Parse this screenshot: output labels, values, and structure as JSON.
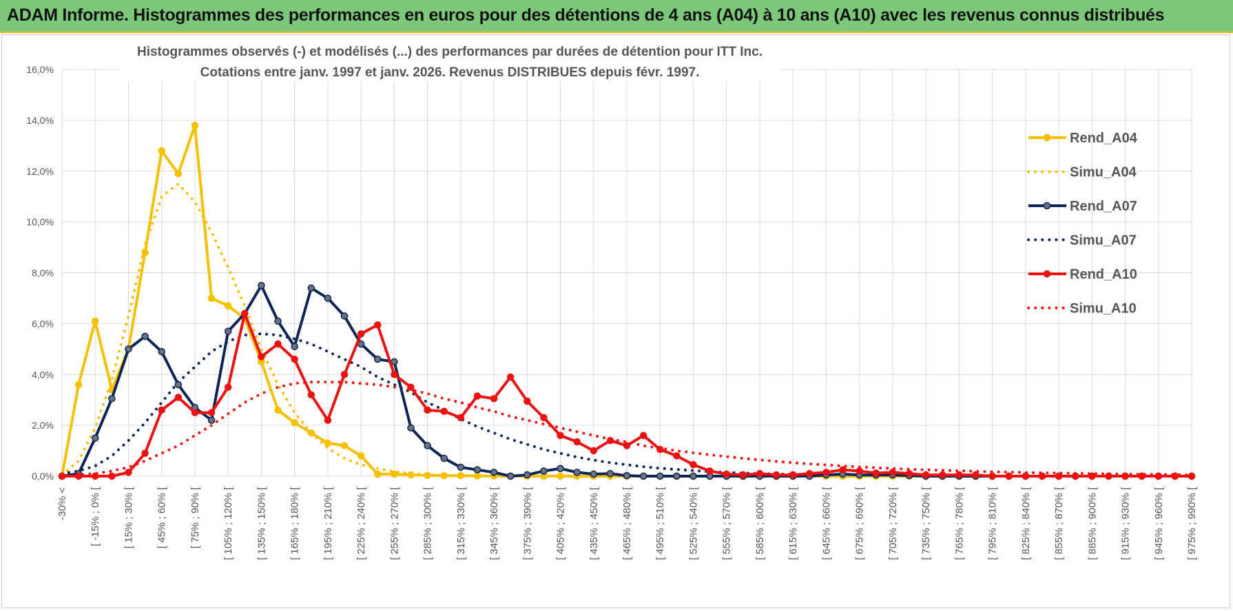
{
  "banner": {
    "title": "ADAM Informe. Histogrammes des performances en euros pour des détentions de 4 ans (A04) à 10 ans (A10) avec les revenus connus distribués",
    "color": "#7dc77a"
  },
  "chart_data": {
    "type": "line",
    "title": "Histogrammes observés (-) et modélisés (...) des performances par durées de détention pour ITT Inc.",
    "subtitle": "Cotations entre janv. 1997 et janv. 2026. Revenus DISTRIBUES depuis févr. 1997.",
    "ylim": [
      0,
      16
    ],
    "yticks": [
      "0,0%",
      "2,0%",
      "4,0%",
      "6,0%",
      "8,0%",
      "10,0%",
      "12,0%",
      "14,0%",
      "16,0%"
    ],
    "grid": true,
    "legend_position": "right",
    "categories": [
      "-30% <",
      "[ -15% ; 0% [",
      "[ 0% ; 15% [",
      "[ 15% ; 30% [",
      "[ 30% ; 45% [",
      "[ 45% ; 60% [",
      "[ 60% ; 75% [",
      "[ 75% ; 90% [",
      "[ 90% ; 105% [",
      "[ 105% ; 120% [",
      "[ 120% ; 135% [",
      "[ 135% ; 150% [",
      "[ 150% ; 165% [",
      "[ 165% ; 180% [",
      "[ 180% ; 195% [",
      "[ 195% ; 210% [",
      "[ 210% ; 225% [",
      "[ 225% ; 240% [",
      "[ 240% ; 255% [",
      "[ 255% ; 270% [",
      "[ 270% ; 285% [",
      "[ 285% ; 300% [",
      "[ 300% ; 315% [",
      "[ 315% ; 330% [",
      "[ 330% ; 345% [",
      "[ 345% ; 360% [",
      "[ 360% ; 375% [",
      "[ 375% ; 390% [",
      "[ 390% ; 405% [",
      "[ 405% ; 420% [",
      "[ 420% ; 435% [",
      "[ 435% ; 450% [",
      "[ 450% ; 465% [",
      "[ 465% ; 480% [",
      "[ 480% ; 495% [",
      "[ 495% ; 510% [",
      "[ 510% ; 525% [",
      "[ 525% ; 540% [",
      "[ 540% ; 555% [",
      "[ 555% ; 570% [",
      "[ 570% ; 585% [",
      "[ 585% ; 600% [",
      "[ 600% ; 615% [",
      "[ 615% ; 630% [",
      "[ 630% ; 645% [",
      "[ 645% ; 660% [",
      "[ 660% ; 675% [",
      "[ 675% ; 690% [",
      "[ 690% ; 705% [",
      "[ 705% ; 720% [",
      "[ 720% ; 735% [",
      "[ 735% ; 750% [",
      "[ 750% ; 765% [",
      "[ 765% ; 780% [",
      "[ 780% ; 795% [",
      "[ 795% ; 810% [",
      "[ 810% ; 825% [",
      "[ 825% ; 840% [",
      "[ 840% ; 855% [",
      "[ 855% ; 870% [",
      "[ 870% ; 885% [",
      "[ 885% ; 900% [",
      "[ 900% ; 915% [",
      "[ 915% ; 930% [",
      "[ 930% ; 945% [",
      "[ 945% ; 960% [",
      "[ 960% ; 975% [",
      "[ 975% ; 990% [",
      "[ 990% ; 1005% ["
    ],
    "visible_tick_labels": [
      "-30% <",
      "[ -15% ; 0% [",
      "[ 15% ; 30% [",
      "[ 45% ; 60% [",
      "[ 75% ; 90% [",
      "[ 105% ; 120% [",
      "[ 135% ; 150% [",
      "[ 165% ; 180% [",
      "[ 195% ; 210% [",
      "[ 225% ; 240% [",
      "[ 255% ; 270% [",
      "[ 285% ; 300% [",
      "[ 315% ; 330% [",
      "[ 345% ; 360% [",
      "[ 375% ; 390% [",
      "[ 405% ; 420% [",
      "[ 435% ; 450% [",
      "[ 465% ; 480% [",
      "[ 495% ; 510% [",
      "[ 525% ; 540% [",
      "[ 555% ; 570% [",
      "[ 585% ; 600% [",
      "[ 615% ; 630% [",
      "[ 645% ; 660% [",
      "[ 675% ; 690% [",
      "[ 705% ; 720% [",
      "[ 735% ; 750% [",
      "[ 765% ; 780% [",
      "[ 795% ; 810% [",
      "[ 825% ; 840% [",
      "[ 855% ; 870% [",
      "[ 885% ; 900% [",
      "[ 915% ; 930% [",
      "[ 945% ; 960% [",
      "[ 975% ; 990% ["
    ],
    "series": [
      {
        "name": "Rend_A04",
        "color": "#f5c000",
        "style": "solid",
        "markers": true,
        "values": [
          0.0,
          3.6,
          6.1,
          3.4,
          5.0,
          8.8,
          12.8,
          11.9,
          13.8,
          7.0,
          6.7,
          6.2,
          4.5,
          2.6,
          2.1,
          1.7,
          1.3,
          1.2,
          0.8,
          0.08,
          0.08,
          0.05,
          0.03,
          0.02,
          0.02,
          0.01,
          0.01,
          0.0,
          0.0,
          0.0,
          0.0,
          0.0,
          0.0,
          0.0,
          0.0,
          0.0,
          0.0,
          0.0,
          0.0,
          0.0,
          0.0,
          0.0,
          0.0,
          0.0,
          0.0,
          0.0,
          0.0,
          0.0,
          0.0,
          0.0,
          0.0,
          0.0,
          0.0,
          0.0,
          0.0,
          0.0,
          0.0,
          0.0,
          0.0,
          0.0,
          0.0,
          0.0,
          0.0,
          0.0,
          0.0,
          0.0,
          0.0,
          0.0,
          0.0
        ]
      },
      {
        "name": "Simu_A04",
        "color": "#f5c000",
        "style": "dotted",
        "markers": false,
        "values": [
          0.05,
          0.6,
          1.9,
          3.8,
          6.3,
          9.1,
          11.0,
          11.5,
          10.8,
          9.6,
          8.2,
          6.7,
          5.0,
          3.6,
          2.5,
          1.7,
          1.1,
          0.7,
          0.45,
          0.3,
          0.18,
          0.1,
          0.06,
          0.03,
          0.02,
          0.0,
          0.0,
          0.0,
          0.0,
          0.0,
          0.0,
          0.0,
          0.0,
          0.0,
          0.0,
          0.0,
          0.0,
          0.0,
          0.0,
          0.0,
          0.0,
          0.0,
          0.0,
          0.0,
          0.0,
          0.0,
          0.0,
          0.0,
          0.0,
          0.0,
          0.0,
          0.0,
          0.0,
          0.0,
          0.0,
          0.0,
          0.0,
          0.0,
          0.0,
          0.0,
          0.0,
          0.0,
          0.0,
          0.0,
          0.0,
          0.0,
          0.0,
          0.0,
          0.0
        ]
      },
      {
        "name": "Rend_A07",
        "color": "#0d2457",
        "style": "solid",
        "markers": true,
        "values": [
          0.0,
          0.1,
          1.5,
          3.05,
          5.0,
          5.5,
          4.9,
          3.6,
          2.7,
          2.2,
          5.7,
          6.4,
          7.5,
          6.1,
          5.1,
          7.4,
          7.0,
          6.3,
          5.2,
          4.6,
          4.5,
          1.9,
          1.2,
          0.7,
          0.35,
          0.25,
          0.15,
          0.0,
          0.05,
          0.2,
          0.3,
          0.15,
          0.08,
          0.1,
          0.02,
          0.0,
          0.0,
          0.0,
          0.0,
          0.0,
          0.0,
          0.0,
          0.0,
          0.0,
          0.0,
          0.0,
          0.05,
          0.08,
          0.05,
          0.05,
          0.05,
          0.02,
          0.0,
          0.0,
          0.0,
          0.0,
          0.0,
          0.0,
          0.0,
          0.0,
          0.0,
          0.0,
          0.0,
          0.0,
          0.0,
          0.0,
          0.0,
          0.0,
          0.0
        ]
      },
      {
        "name": "Simu_A07",
        "color": "#0d2457",
        "style": "dotted",
        "markers": false,
        "values": [
          0.1,
          0.2,
          0.4,
          0.8,
          1.4,
          2.1,
          2.9,
          3.7,
          4.3,
          4.9,
          5.3,
          5.55,
          5.6,
          5.55,
          5.4,
          5.2,
          4.9,
          4.6,
          4.3,
          3.9,
          3.6,
          3.3,
          2.9,
          2.6,
          2.25,
          1.95,
          1.7,
          1.45,
          1.25,
          1.05,
          0.9,
          0.75,
          0.63,
          0.53,
          0.45,
          0.37,
          0.31,
          0.26,
          0.22,
          0.18,
          0.15,
          0.12,
          0.1,
          0.08,
          0.07,
          0.06,
          0.05,
          0.04,
          0.03,
          0.03,
          0.02,
          0.02,
          0.01,
          0.01,
          0.01,
          0.01,
          0.0,
          0.0,
          0.0,
          0.0,
          0.0,
          0.0,
          0.0,
          0.0,
          0.0,
          0.0,
          0.0,
          0.0,
          0.0
        ]
      },
      {
        "name": "Rend_A10",
        "color": "#ee1111",
        "style": "solid",
        "markers": true,
        "values": [
          0.0,
          0.0,
          0.0,
          0.0,
          0.15,
          0.9,
          2.6,
          3.1,
          2.5,
          2.5,
          3.5,
          6.4,
          4.7,
          5.2,
          4.6,
          3.2,
          2.2,
          4.0,
          5.6,
          5.95,
          4.0,
          3.5,
          2.6,
          2.55,
          2.3,
          3.15,
          3.05,
          3.9,
          2.95,
          2.3,
          1.6,
          1.35,
          1.0,
          1.4,
          1.2,
          1.6,
          1.05,
          0.8,
          0.45,
          0.2,
          0.08,
          0.05,
          0.1,
          0.05,
          0.05,
          0.1,
          0.15,
          0.25,
          0.2,
          0.12,
          0.15,
          0.1,
          0.05,
          0.05,
          0.05,
          0.05,
          0.0,
          0.0,
          0.0,
          0.0,
          0.0,
          0.0,
          0.0,
          0.0,
          0.0,
          0.0,
          0.0,
          0.0,
          0.0
        ]
      },
      {
        "name": "Simu_A10",
        "color": "#ee1111",
        "style": "dotted",
        "markers": false,
        "values": [
          0.02,
          0.05,
          0.1,
          0.2,
          0.35,
          0.6,
          0.9,
          1.2,
          1.6,
          2.0,
          2.45,
          2.9,
          3.25,
          3.5,
          3.65,
          3.7,
          3.7,
          3.7,
          3.65,
          3.6,
          3.5,
          3.4,
          3.25,
          3.05,
          2.9,
          2.7,
          2.55,
          2.35,
          2.2,
          2.05,
          1.9,
          1.75,
          1.6,
          1.45,
          1.35,
          1.2,
          1.1,
          1.0,
          0.92,
          0.84,
          0.77,
          0.7,
          0.64,
          0.58,
          0.53,
          0.48,
          0.44,
          0.4,
          0.36,
          0.33,
          0.3,
          0.27,
          0.25,
          0.23,
          0.21,
          0.19,
          0.17,
          0.16,
          0.14,
          0.13,
          0.12,
          0.11,
          0.1,
          0.09,
          0.08,
          0.07,
          0.07,
          0.06,
          0.05
        ]
      }
    ]
  }
}
